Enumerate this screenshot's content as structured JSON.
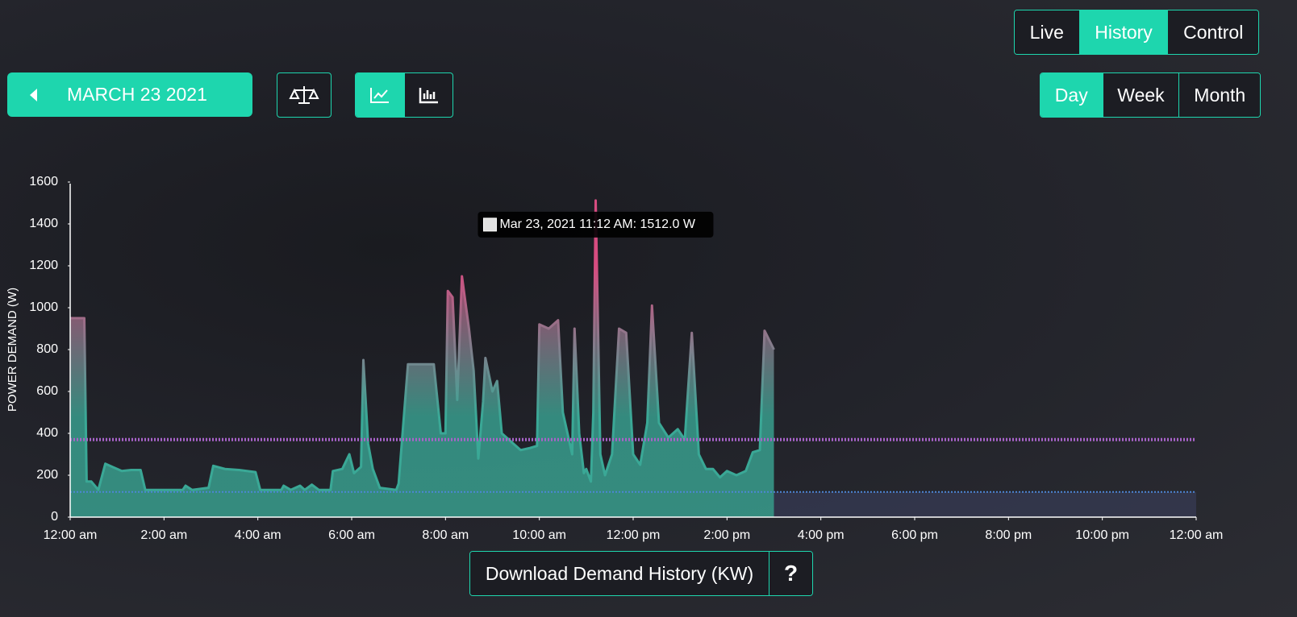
{
  "nav": {
    "tabs": [
      "Live",
      "History",
      "Control"
    ],
    "active": 1
  },
  "date_picker": {
    "label": "MARCH 23 2021"
  },
  "range": {
    "tabs": [
      "Day",
      "Week",
      "Month"
    ],
    "active": 0
  },
  "download": {
    "label": "Download Demand History (KW)",
    "help": "?"
  },
  "chart_data": {
    "type": "area",
    "ylabel": "POWER DEMAND (W)",
    "gradient_colors": [
      "#d64c80",
      "#3aa896"
    ],
    "x": [
      0,
      0.3,
      0.35,
      0.45,
      0.6,
      0.75,
      0.9,
      1.1,
      1.3,
      1.5,
      1.6,
      2.4,
      2.46,
      2.6,
      2.95,
      3.05,
      3.3,
      3.6,
      3.95,
      4.05,
      4.5,
      4.55,
      4.7,
      4.9,
      5.0,
      5.15,
      5.3,
      5.55,
      5.6,
      5.8,
      5.95,
      6.05,
      6.2,
      6.25,
      6.35,
      6.45,
      6.6,
      6.95,
      7.0,
      7.2,
      7.5,
      7.75,
      7.9,
      8.0,
      8.05,
      8.15,
      8.25,
      8.35,
      8.5,
      8.6,
      8.7,
      8.8,
      8.85,
      9.0,
      9.1,
      9.2,
      9.4,
      9.6,
      9.8,
      9.95,
      10.0,
      10.2,
      10.4,
      10.5,
      10.7,
      10.75,
      10.85,
      10.95,
      11.0,
      11.1,
      11.15,
      11.2,
      11.3,
      11.4,
      11.55,
      11.7,
      11.85,
      12.0,
      12.15,
      12.3,
      12.4,
      12.55,
      12.75,
      12.95,
      13.1,
      13.25,
      13.4,
      13.55,
      13.7,
      13.85,
      14.0,
      14.2,
      14.4,
      14.55,
      14.7,
      14.8,
      15.0
    ],
    "values": [
      950,
      950,
      170,
      170,
      130,
      255,
      240,
      220,
      225,
      225,
      130,
      130,
      150,
      130,
      140,
      245,
      230,
      225,
      215,
      130,
      130,
      150,
      130,
      150,
      130,
      155,
      130,
      130,
      220,
      230,
      300,
      210,
      240,
      750,
      350,
      230,
      140,
      130,
      160,
      730,
      730,
      730,
      400,
      400,
      1080,
      1050,
      560,
      1150,
      900,
      700,
      280,
      550,
      760,
      600,
      650,
      400,
      360,
      320,
      330,
      340,
      920,
      900,
      940,
      500,
      300,
      900,
      400,
      210,
      230,
      170,
      500,
      1512,
      300,
      200,
      300,
      900,
      880,
      300,
      250,
      450,
      1010,
      450,
      380,
      420,
      370,
      880,
      300,
      230,
      230,
      190,
      220,
      200,
      220,
      310,
      320,
      890,
      800
    ],
    "xlim": [
      0,
      24
    ],
    "xticks": [
      {
        "value": 0,
        "label": "12:00 am"
      },
      {
        "value": 2,
        "label": "2:00 am"
      },
      {
        "value": 4,
        "label": "4:00 am"
      },
      {
        "value": 6,
        "label": "6:00 am"
      },
      {
        "value": 8,
        "label": "8:00 am"
      },
      {
        "value": 10,
        "label": "10:00 am"
      },
      {
        "value": 12,
        "label": "12:00 pm"
      },
      {
        "value": 14,
        "label": "2:00 pm"
      },
      {
        "value": 16,
        "label": "4:00 pm"
      },
      {
        "value": 18,
        "label": "6:00 pm"
      },
      {
        "value": 20,
        "label": "8:00 pm"
      },
      {
        "value": 22,
        "label": "10:00 pm"
      },
      {
        "value": 24,
        "label": "12:00 am"
      }
    ],
    "ylim": [
      0,
      1600
    ],
    "yticks": [
      0,
      200,
      400,
      600,
      800,
      1000,
      1200,
      1400,
      1600
    ],
    "reference_lines": [
      {
        "value": 370,
        "color": "#a863c9"
      },
      {
        "value": 120,
        "color": "#4d86d6"
      }
    ],
    "annotation": {
      "text": "Mar 23, 2021 11:12 AM: 1512.0 W",
      "x": 11.2,
      "y": 1512
    }
  }
}
